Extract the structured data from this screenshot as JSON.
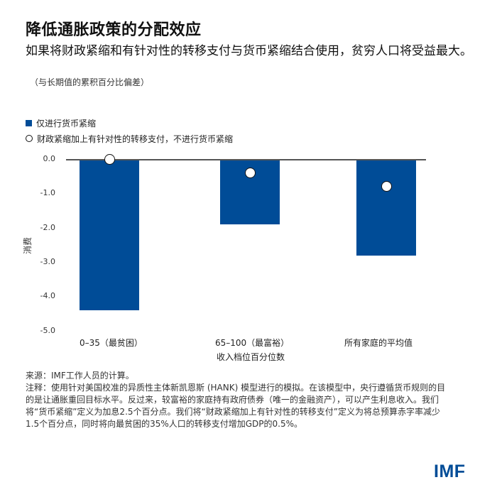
{
  "header": {
    "title": "降低通胀政策的分配效应",
    "subtitle": "如果将财政紧缩和有针对性的转移支付与货币紧缩结合使用，贫穷人口将受益最大。",
    "unit_note": "（与长期值的累积百分比偏差）"
  },
  "legend": {
    "items": [
      {
        "label": "仅进行货币紧缩",
        "marker": "square",
        "color": "#004c97"
      },
      {
        "label": "财政紧缩加上有针对性的转移支付，不进行货币紧缩",
        "marker": "hollow-circle",
        "color": "#ffffff"
      }
    ]
  },
  "axes": {
    "y_label": "消费",
    "y_ticks": [
      "0.0",
      "-1.0",
      "-2.0",
      "-3.0",
      "-4.0",
      "-5.0"
    ],
    "x_ticks": [
      "0–35（最贫困）",
      "65–100（最富裕）",
      "所有家庭的平均值"
    ],
    "x_label": "收入档位百分位数"
  },
  "chart_data": {
    "type": "bar",
    "title": "降低通胀政策的分配效应",
    "subtitle": "如果将财政紧缩和有针对性的转移支付与货币紧缩结合使用，贫穷人口将受益最大。（与长期值的累积百分比偏差）",
    "categories": [
      "0–35（最贫困）",
      "65–100（最富裕）",
      "所有家庭的平均值"
    ],
    "series": [
      {
        "name": "仅进行货币紧缩",
        "type": "bar",
        "color": "#004c97",
        "values": [
          -4.4,
          -1.9,
          -2.8
        ]
      },
      {
        "name": "财政紧缩加上有针对性的转移支付，不进行货币紧缩",
        "type": "scatter",
        "marker": "hollow-circle",
        "values": [
          0.0,
          -0.4,
          -0.8
        ]
      }
    ],
    "xlabel": "收入档位百分位数",
    "ylabel": "消费",
    "ylim": [
      -5.0,
      0.0
    ],
    "yticks": [
      0.0,
      -1.0,
      -2.0,
      -3.0,
      -4.0,
      -5.0
    ],
    "grid": false,
    "legend_position": "top-left"
  },
  "notes": {
    "source": "来源：IMF工作人员的计算。",
    "note": "注释：使用针对美国校准的异质性主体新凯恩斯 (HANK) 模型进行的模拟。在该模型中，央行遵循货币规则的目的是让通胀重回目标水平。反过来，较富裕的家庭持有政府债券（唯一的金融资产），可以产生利息收入。我们将“货币紧缩”定义为加息2.5个百分点。我们将“财政紧缩加上有针对性的转移支付”定义为将总预算赤字率减少1.5个百分点，同时将向最贫困的35%人口的转移支付增加GDP的0.5%。"
  },
  "branding": {
    "logo": "IMF",
    "color": "#004c97"
  }
}
